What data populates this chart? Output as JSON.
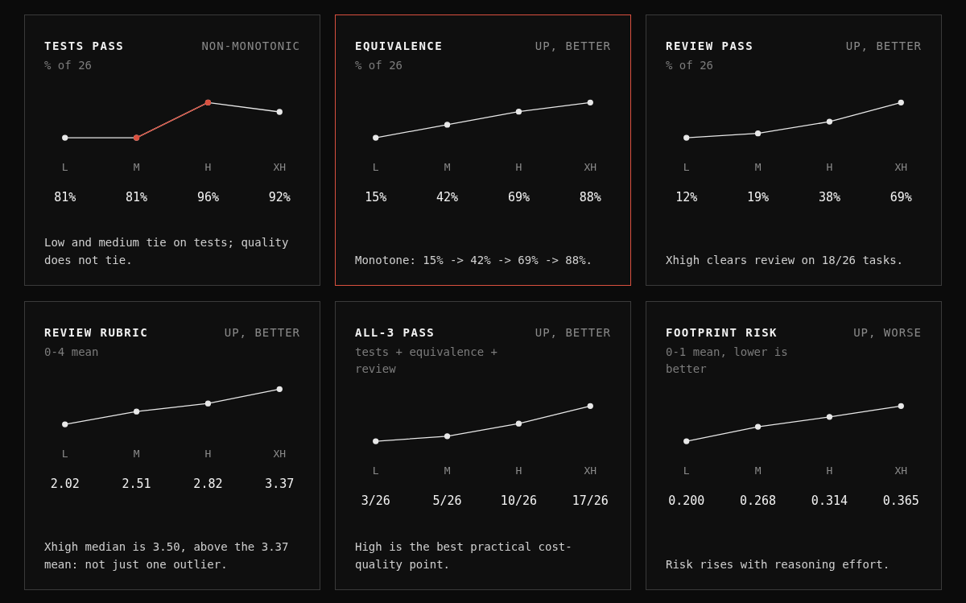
{
  "chart_data": [
    {
      "type": "line",
      "title": "TESTS PASS",
      "subtitle": "% of 26",
      "categories": [
        "L",
        "M",
        "H",
        "XH"
      ],
      "series": [
        {
          "color": "#e8e8e8",
          "values": [
            81,
            81,
            96,
            92
          ],
          "value_labels": [
            "81%",
            "81%",
            "96%",
            "92%"
          ]
        },
        {
          "color": "#d9503f",
          "values": [
            null,
            81,
            96,
            null
          ]
        }
      ],
      "annotations": [
        "NON-MONOTONIC",
        "Low and medium tie on tests; quality does not tie."
      ],
      "marker": "circle",
      "grid": false,
      "legend": false,
      "tick_labels": "x"
    },
    {
      "type": "line",
      "title": "EQUIVALENCE",
      "subtitle": "% of 26",
      "categories": [
        "L",
        "M",
        "H",
        "XH"
      ],
      "series": [
        {
          "color": "#e8e8e8",
          "values": [
            15,
            42,
            69,
            88
          ],
          "value_labels": [
            "15%",
            "42%",
            "69%",
            "88%"
          ]
        }
      ],
      "annotations": [
        "UP, BETTER",
        "Monotone: 15% -> 42% -> 69% -> 88%."
      ],
      "marker": "circle",
      "grid": false,
      "legend": false,
      "tick_labels": "x"
    },
    {
      "type": "line",
      "title": "REVIEW PASS",
      "subtitle": "% of 26",
      "categories": [
        "L",
        "M",
        "H",
        "XH"
      ],
      "series": [
        {
          "color": "#e8e8e8",
          "values": [
            12,
            19,
            38,
            69
          ],
          "value_labels": [
            "12%",
            "19%",
            "38%",
            "69%"
          ]
        }
      ],
      "annotations": [
        "UP, BETTER",
        "Xhigh clears review on 18/26 tasks."
      ],
      "marker": "circle",
      "grid": false,
      "legend": false,
      "tick_labels": "x"
    },
    {
      "type": "line",
      "title": "REVIEW RUBRIC",
      "subtitle": "0-4 mean",
      "categories": [
        "L",
        "M",
        "H",
        "XH"
      ],
      "series": [
        {
          "color": "#e8e8e8",
          "values": [
            2.02,
            2.51,
            2.82,
            3.37
          ],
          "value_labels": [
            "2.02",
            "2.51",
            "2.82",
            "3.37"
          ]
        }
      ],
      "annotations": [
        "UP, BETTER",
        "Xhigh median is 3.50, above the 3.37 mean: not just one outlier."
      ],
      "marker": "circle",
      "grid": false,
      "legend": false,
      "tick_labels": "x"
    },
    {
      "type": "line",
      "title": "ALL-3 PASS",
      "subtitle": "tests + equivalence + review",
      "categories": [
        "L",
        "M",
        "H",
        "XH"
      ],
      "series": [
        {
          "color": "#e8e8e8",
          "values": [
            3,
            5,
            10,
            17
          ],
          "value_labels": [
            "3/26",
            "5/26",
            "10/26",
            "17/26"
          ]
        }
      ],
      "annotations": [
        "UP, BETTER",
        "High is the best practical cost-quality point."
      ],
      "marker": "circle",
      "grid": false,
      "legend": false,
      "tick_labels": "x"
    },
    {
      "type": "line",
      "title": "FOOTPRINT RISK",
      "subtitle": "0-1 mean, lower is better",
      "categories": [
        "L",
        "M",
        "H",
        "XH"
      ],
      "series": [
        {
          "color": "#e8e8e8",
          "values": [
            0.2,
            0.268,
            0.314,
            0.365
          ],
          "value_labels": [
            "0.200",
            "0.268",
            "0.314",
            "0.365"
          ]
        }
      ],
      "annotations": [
        "UP, WORSE",
        "Risk rises with reasoning effort."
      ],
      "marker": "circle",
      "grid": false,
      "legend": false,
      "tick_labels": "x"
    }
  ]
}
